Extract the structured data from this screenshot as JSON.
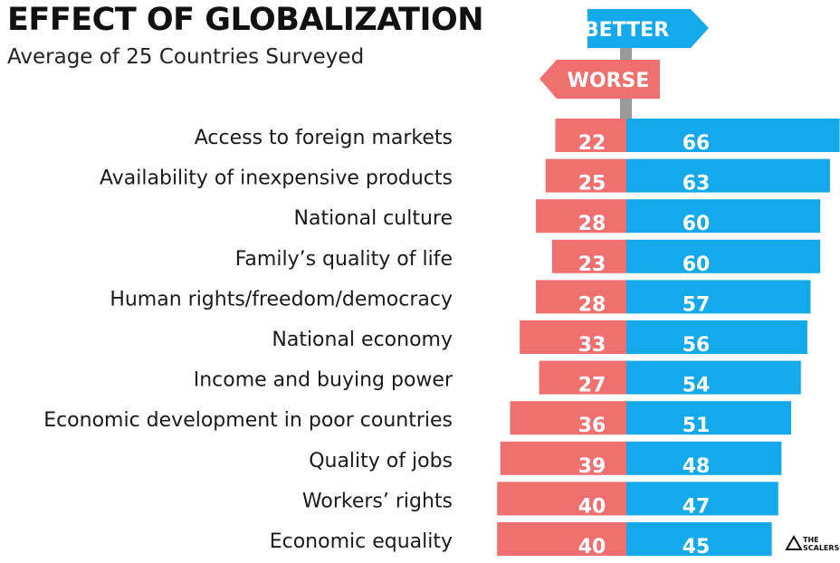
{
  "title": "EFFECT OF GLOBALIZATION",
  "subtitle": "Average of 25 Countries Surveyed",
  "signs": {
    "better": "BETTER",
    "worse": "WORSE"
  },
  "logo": {
    "line1": "THE",
    "line2": "SCALERS"
  },
  "colors": {
    "worse": "#f07070",
    "better": "#13a9ea",
    "pole": "#9a9a9a"
  },
  "chart_data": {
    "type": "bar",
    "orientation": "horizontal-diverging",
    "categories": [
      "Access to foreign markets",
      "Availability of inexpensive products",
      "National culture",
      "Family’s quality of life",
      "Human rights/freedom/democracy",
      "National economy",
      "Income and buying power",
      "Economic development in poor countries",
      "Quality of jobs",
      "Workers’ rights",
      "Economic equality"
    ],
    "series": [
      {
        "name": "WORSE",
        "values": [
          22,
          25,
          28,
          23,
          28,
          33,
          27,
          36,
          39,
          40,
          40
        ]
      },
      {
        "name": "BETTER",
        "values": [
          66,
          63,
          60,
          60,
          57,
          56,
          54,
          51,
          48,
          47,
          45
        ]
      }
    ],
    "title": "EFFECT OF GLOBALIZATION",
    "subtitle": "Average of 25 Countries Surveyed"
  }
}
